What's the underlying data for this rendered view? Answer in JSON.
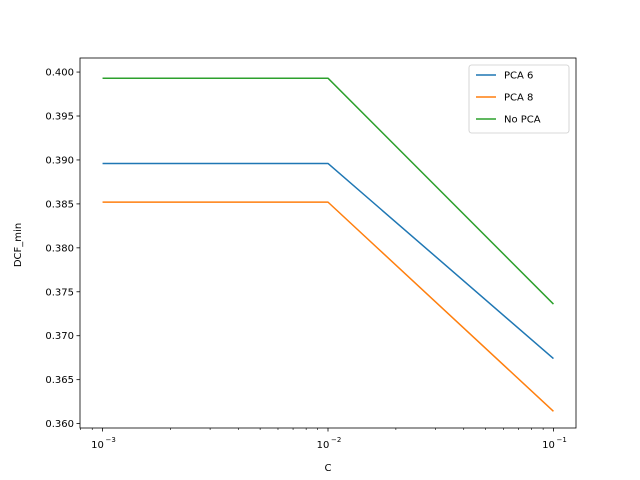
{
  "chart_data": {
    "type": "line",
    "title": "",
    "xlabel": "C",
    "ylabel": "DCF_min",
    "xscale": "log",
    "x": [
      0.001,
      0.01,
      0.1
    ],
    "xticks": [
      {
        "value": 0.001,
        "base": "10",
        "exp": "−3"
      },
      {
        "value": 0.01,
        "base": "10",
        "exp": "−2"
      },
      {
        "value": 0.1,
        "base": "10",
        "exp": "−1"
      }
    ],
    "ylim": [
      0.3595,
      0.4016
    ],
    "yticks": [
      "0.360",
      "0.365",
      "0.370",
      "0.375",
      "0.380",
      "0.385",
      "0.390",
      "0.395",
      "0.400"
    ],
    "grid": false,
    "legend_position": "top-right",
    "series": [
      {
        "name": "PCA 6",
        "color": "#1f77b4",
        "values": [
          0.3896,
          0.3896,
          0.3674
        ]
      },
      {
        "name": "PCA 8",
        "color": "#ff7f0e",
        "values": [
          0.3852,
          0.3852,
          0.3614
        ]
      },
      {
        "name": "No PCA",
        "color": "#2ca02c",
        "values": [
          0.3993,
          0.3993,
          0.3736
        ]
      }
    ]
  }
}
